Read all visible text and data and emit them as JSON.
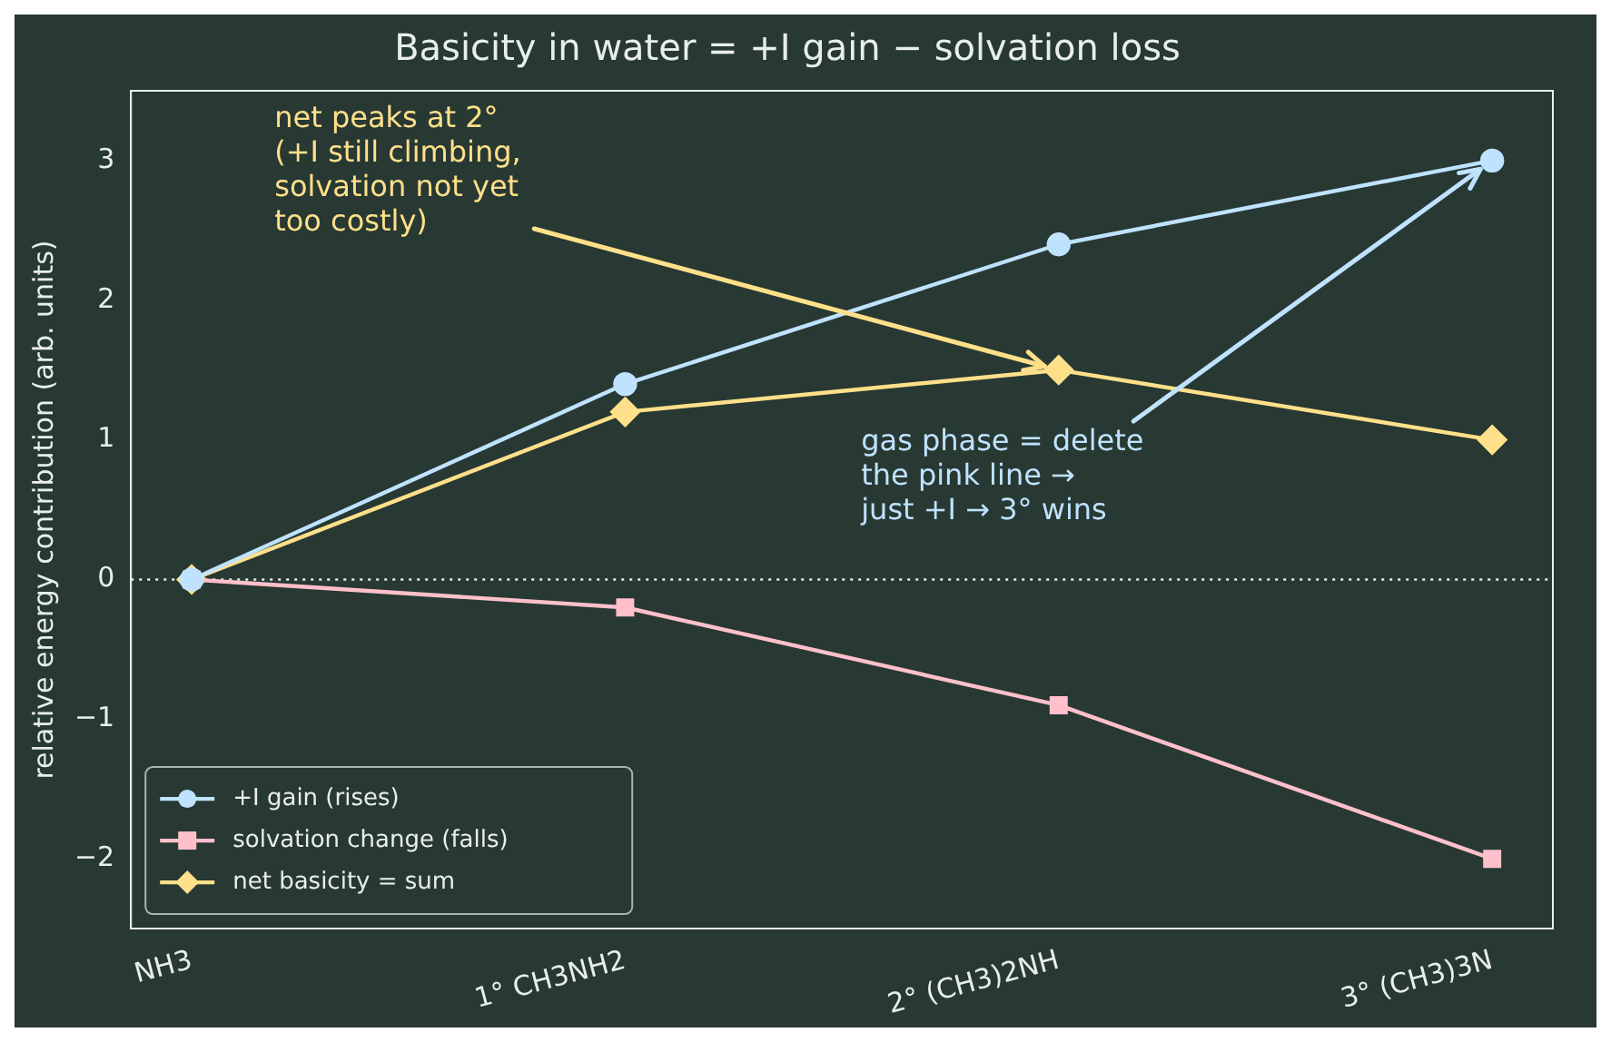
{
  "chart_data": {
    "type": "line",
    "title": "Basicity in water = +I gain − solvation loss",
    "ylabel": "relative energy contribution (arb. units)",
    "categories": [
      "NH3",
      "1° CH3NH2",
      "2° (CH3)2NH",
      "3° (CH3)3N"
    ],
    "series": [
      {
        "name": "+I gain (rises)",
        "color": "#bfe3ff",
        "marker": "circle",
        "values": [
          0,
          1.4,
          2.4,
          3.0
        ]
      },
      {
        "name": "solvation change (falls)",
        "color": "#ffc0cb",
        "marker": "square",
        "values": [
          0,
          -0.2,
          -0.9,
          -2.0
        ]
      },
      {
        "name": "net basicity = sum",
        "color": "#ffe08a",
        "marker": "diamond",
        "values": [
          0,
          1.2,
          1.5,
          1.0
        ]
      }
    ],
    "ylim": [
      -2.5,
      3.5
    ],
    "yticks": [
      -2,
      -1,
      0,
      1,
      2,
      3
    ],
    "grid": false,
    "legend": "bottom left",
    "line_style": "solid",
    "ref_lines": [
      {
        "axis": "y",
        "value": 0,
        "color": "#e8eee8",
        "line_style": "dotted"
      }
    ],
    "annotations": [
      {
        "text": "net peaks at 2°\n(+I still climbing,\nsolvation not yet\ntoo costly)",
        "x": "2° (CH3)2NH",
        "y": 1.5
      },
      {
        "text": "gas phase = delete\nthe pink line →\njust +I → 3° wins",
        "x": "3° (CH3)3N",
        "y": 3.0
      }
    ]
  }
}
